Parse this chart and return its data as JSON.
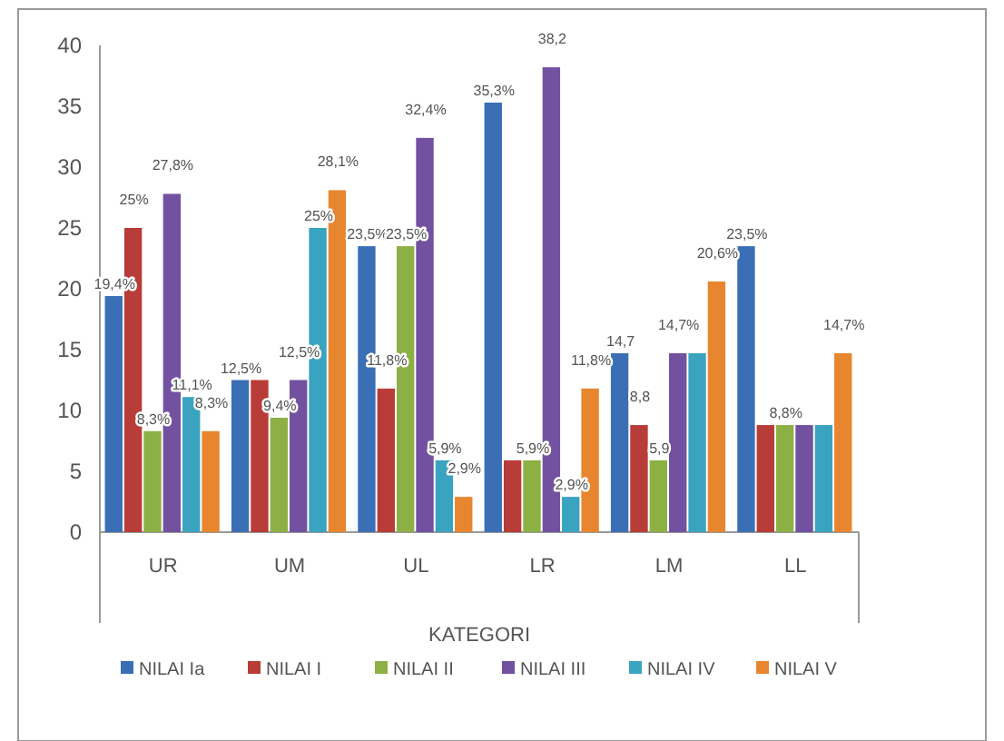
{
  "chart_data": {
    "type": "bar",
    "xlabel": "KATEGORI",
    "categories": [
      "UR",
      "UM",
      "UL",
      "LR",
      "LM",
      "LL"
    ],
    "series": [
      {
        "name": "NILAI Ia",
        "color": "#3a6fb5",
        "values": [
          19.4,
          12.5,
          23.5,
          35.3,
          14.7,
          23.5
        ],
        "value_labels": [
          "19,4%",
          "12,5%",
          "23,5%",
          "35,3%",
          "14,7",
          "23,5%"
        ]
      },
      {
        "name": "NILAI I",
        "color": "#b83c37",
        "values": [
          25,
          12.5,
          11.8,
          5.9,
          8.8,
          8.8
        ],
        "value_labels": [
          "25%",
          null,
          "11,8%",
          null,
          "8,8",
          null
        ]
      },
      {
        "name": "NILAI II",
        "color": "#8db045",
        "values": [
          8.3,
          9.4,
          23.5,
          5.9,
          5.9,
          8.8
        ],
        "value_labels": [
          "8,3%",
          "9,4%",
          "23,5%",
          "5,9%",
          "5,9",
          "8,8%"
        ]
      },
      {
        "name": "NILAI III",
        "color": "#7251a0",
        "values": [
          27.8,
          12.5,
          32.4,
          38.2,
          14.7,
          8.8
        ],
        "value_labels": [
          "27,8%",
          "12,5%",
          "32,4%",
          "38,2",
          "14,7%",
          null
        ]
      },
      {
        "name": "NILAI IV",
        "color": "#3aa3bf",
        "values": [
          11.1,
          25,
          5.9,
          2.9,
          14.7,
          8.8
        ],
        "value_labels": [
          "11,1%",
          "25%",
          "5,9%",
          "2,9%",
          null,
          null
        ]
      },
      {
        "name": "NILAI V",
        "color": "#e8852f",
        "values": [
          8.3,
          28.1,
          2.9,
          11.8,
          20.6,
          14.7
        ],
        "value_labels": [
          "8,3%",
          "28,1%",
          "2,9%",
          "11,8%",
          "20,6%",
          "14,7%"
        ]
      }
    ],
    "ylim": [
      0,
      40
    ],
    "yticks": [
      0,
      5,
      10,
      15,
      20,
      25,
      30,
      35,
      40
    ],
    "grid": false,
    "legend": "bottom"
  }
}
